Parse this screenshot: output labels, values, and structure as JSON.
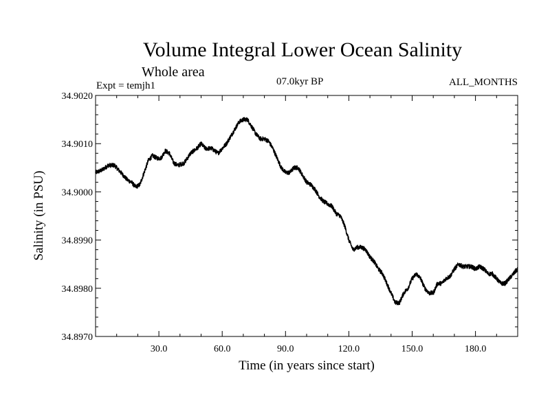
{
  "chart_data": {
    "type": "line",
    "title": "Volume Integral Lower Ocean Salinity",
    "subtitle": "Whole area",
    "expt_label": "Expt = temjh1",
    "period_label": "07.0kyr BP",
    "months_label": "ALL_MONTHS",
    "xlabel": "Time (in years since start)",
    "ylabel": "Salinity (in PSU)",
    "xlim": [
      0,
      200
    ],
    "ylim": [
      34.897,
      34.902
    ],
    "x_ticks": [
      30,
      60,
      90,
      120,
      150,
      180
    ],
    "x_tick_labels": [
      "30.0",
      "60.0",
      "90.0",
      "120.0",
      "150.0",
      "180.0"
    ],
    "y_ticks": [
      34.897,
      34.898,
      34.899,
      34.9,
      34.901,
      34.902
    ],
    "y_tick_labels": [
      "34.8970",
      "34.8980",
      "34.8990",
      "34.9000",
      "34.9010",
      "34.9020"
    ],
    "grid": false,
    "series": [
      {
        "name": "salinity",
        "color": "#000000",
        "x": [
          0,
          3,
          6,
          9,
          12,
          15,
          17,
          19,
          21,
          23,
          25,
          27,
          29,
          31,
          33,
          35,
          37,
          39,
          42,
          45,
          48,
          50,
          52,
          55,
          58,
          60,
          62,
          64,
          66,
          68,
          70,
          72,
          74,
          76,
          78,
          80,
          82,
          84,
          86,
          88,
          90,
          92,
          94,
          96,
          98,
          100,
          102,
          104,
          106,
          108,
          110,
          112,
          114,
          116,
          118,
          120,
          122,
          124,
          126,
          128,
          130,
          132,
          134,
          136,
          138,
          140,
          142,
          144,
          146,
          148,
          150,
          152,
          154,
          156,
          158,
          160,
          162,
          164,
          166,
          168,
          170,
          172,
          174,
          176,
          178,
          180,
          182,
          184,
          186,
          188,
          190,
          192,
          194,
          196,
          198,
          200
        ],
        "values": [
          34.9004,
          34.90045,
          34.90055,
          34.90055,
          34.9004,
          34.90025,
          34.9002,
          34.9001,
          34.90015,
          34.9004,
          34.90065,
          34.90075,
          34.9007,
          34.9007,
          34.90085,
          34.9008,
          34.9006,
          34.90055,
          34.9006,
          34.9008,
          34.9009,
          34.901,
          34.9009,
          34.9009,
          34.9008,
          34.9009,
          34.901,
          34.90115,
          34.9013,
          34.90145,
          34.9015,
          34.9015,
          34.90135,
          34.9012,
          34.9011,
          34.9011,
          34.90105,
          34.9009,
          34.9007,
          34.9005,
          34.9004,
          34.9004,
          34.9005,
          34.9005,
          34.90035,
          34.9002,
          34.90015,
          34.90005,
          34.8999,
          34.8998,
          34.89975,
          34.8997,
          34.89955,
          34.8995,
          34.8993,
          34.899,
          34.8988,
          34.89885,
          34.89885,
          34.8988,
          34.89865,
          34.89855,
          34.8984,
          34.8983,
          34.8981,
          34.8979,
          34.8977,
          34.8977,
          34.8979,
          34.898,
          34.8982,
          34.8983,
          34.8982,
          34.898,
          34.8979,
          34.8979,
          34.8981,
          34.8981,
          34.8982,
          34.89825,
          34.8984,
          34.8985,
          34.89845,
          34.89845,
          34.89845,
          34.8984,
          34.89845,
          34.8984,
          34.8983,
          34.8983,
          34.8982,
          34.8981,
          34.8981,
          34.8982,
          34.8983,
          34.8984
        ]
      }
    ]
  }
}
